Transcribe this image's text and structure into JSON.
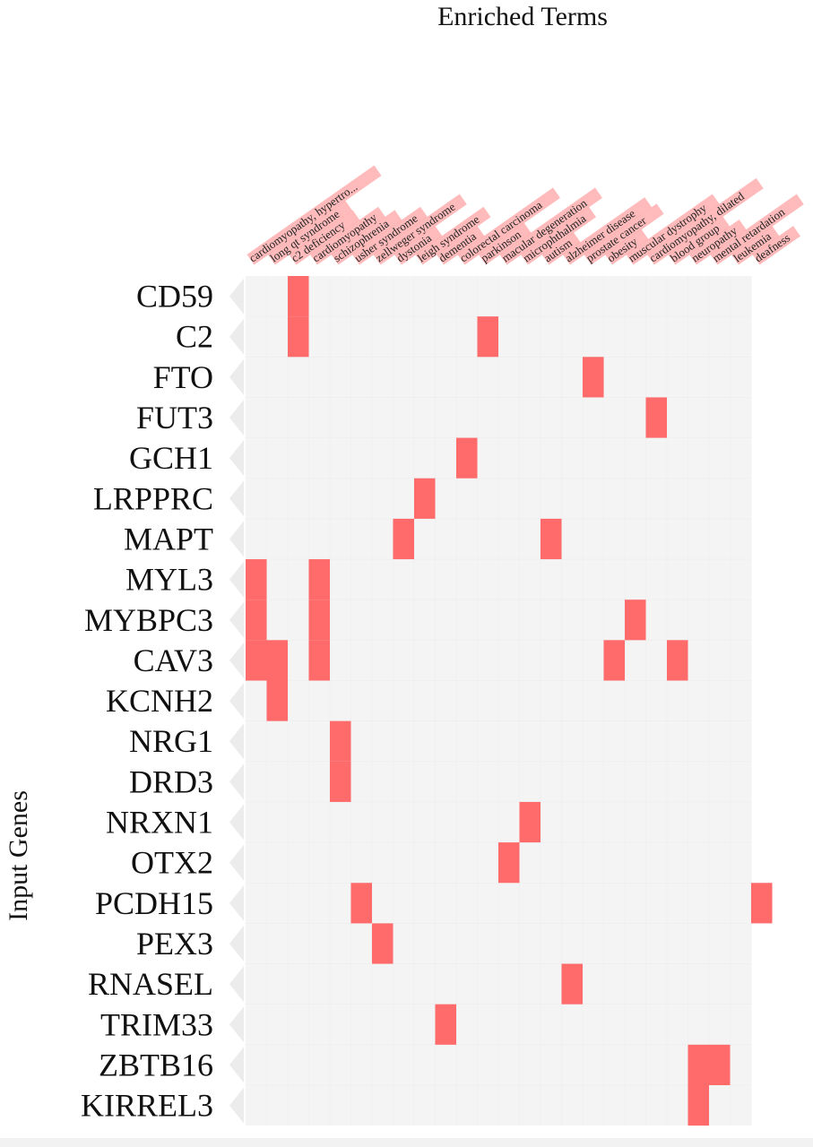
{
  "chart_data": {
    "type": "heatmap",
    "title": "Enriched Terms",
    "ylabel": "Input Genes",
    "xlabel": "",
    "terms": [
      "cardiomyopathy, hypertro...",
      "long qt syndrome",
      "c2 deficiency",
      "cardiomyopathy",
      "schizophrenia",
      "usher syndrome",
      "zellweger syndrome",
      "dystonia",
      "leigh syndrome",
      "dementia",
      "colorectal carcinoma",
      "parkinson",
      "macular degeneration",
      "microphthalmia",
      "autism",
      "alzheimer disease",
      "prostate cancer",
      "obesity",
      "muscular dystrophy",
      "cardiomyopathy, dilated",
      "blood group",
      "neuropathy",
      "mental retardation",
      "leukemia",
      "deafness"
    ],
    "genes": [
      "CD59",
      "C2",
      "FTO",
      "FUT3",
      "GCH1",
      "LRPPRC",
      "MAPT",
      "MYL3",
      "MYBPC3",
      "CAV3",
      "KCNH2",
      "NRG1",
      "DRD3",
      "NRXN1",
      "OTX2",
      "PCDH15",
      "PEX3",
      "RNASEL",
      "TRIM33",
      "ZBTB16",
      "KIRREL3"
    ],
    "cells": [
      {
        "gene": "CD59",
        "term": 2
      },
      {
        "gene": "C2",
        "term": 2
      },
      {
        "gene": "C2",
        "term": 11
      },
      {
        "gene": "FTO",
        "term": 16
      },
      {
        "gene": "FUT3",
        "term": 19
      },
      {
        "gene": "GCH1",
        "term": 10
      },
      {
        "gene": "LRPPRC",
        "term": 8
      },
      {
        "gene": "MAPT",
        "term": 7
      },
      {
        "gene": "MAPT",
        "term": 14
      },
      {
        "gene": "MYL3",
        "term": 0
      },
      {
        "gene": "MYL3",
        "term": 3
      },
      {
        "gene": "MYBPC3",
        "term": 0
      },
      {
        "gene": "MYBPC3",
        "term": 3
      },
      {
        "gene": "MYBPC3",
        "term": 18
      },
      {
        "gene": "CAV3",
        "term": 0
      },
      {
        "gene": "CAV3",
        "term": 1
      },
      {
        "gene": "CAV3",
        "term": 3
      },
      {
        "gene": "CAV3",
        "term": 17
      },
      {
        "gene": "CAV3",
        "term": 20
      },
      {
        "gene": "KCNH2",
        "term": 1
      },
      {
        "gene": "NRG1",
        "term": 4
      },
      {
        "gene": "DRD3",
        "term": 4
      },
      {
        "gene": "NRXN1",
        "term": 13
      },
      {
        "gene": "OTX2",
        "term": 12
      },
      {
        "gene": "PCDH15",
        "term": 5
      },
      {
        "gene": "PCDH15",
        "term": 24
      },
      {
        "gene": "PEX3",
        "term": 6
      },
      {
        "gene": "RNASEL",
        "term": 15
      },
      {
        "gene": "TRIM33",
        "term": 9
      },
      {
        "gene": "ZBTB16",
        "term": 21
      },
      {
        "gene": "ZBTB16",
        "term": 22
      },
      {
        "gene": "KIRREL3",
        "term": 21
      }
    ],
    "colors": {
      "cell": "#ff6b6b",
      "background": "#f4f4f4",
      "label_highlight": "#ffaaaa",
      "pointer": "#ececec"
    },
    "grid": false,
    "legend": "none"
  }
}
